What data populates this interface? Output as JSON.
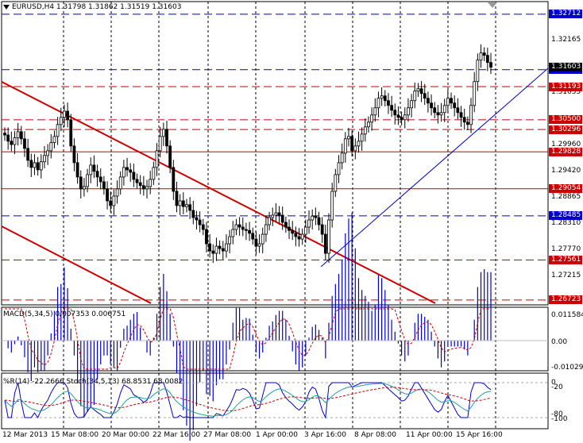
{
  "main": {
    "symbol_info": "EURUSD,H4  1.31798 1.31862 1.31519 1.31603",
    "price_min": 1.2672,
    "price_max": 1.3271,
    "axis_labels": [
      "1.32712",
      "1.32165",
      "1.31055",
      "1.29960",
      "1.29420",
      "1.28865",
      "1.28310",
      "1.27770",
      "1.27215",
      "1.26723"
    ],
    "levels": [
      {
        "label": "1.32712",
        "price": 1.32712,
        "color": "#0000cc",
        "style": "dash"
      },
      {
        "label": "1.31550",
        "price": 1.3155,
        "color": "#0000cc",
        "style": "dash"
      },
      {
        "label": "1.31193",
        "price": 1.31193,
        "color": "#cc0000",
        "style": "dash"
      },
      {
        "label": "1.30500",
        "price": 1.305,
        "color": "#cc0000",
        "style": "dash"
      },
      {
        "label": "1.30296",
        "price": 1.30296,
        "color": "#cc0000",
        "style": "dash"
      },
      {
        "label": "1.29828",
        "price": 1.29828,
        "color": "#cc0000",
        "style": "solid"
      },
      {
        "label": "1.29054",
        "price": 1.29054,
        "color": "#cc0000",
        "style": "solid"
      },
      {
        "label": "1.28485",
        "price": 1.28485,
        "color": "#0000cc",
        "style": "dash"
      },
      {
        "label": "1.27561",
        "price": 1.27561,
        "color": "#cc0000",
        "style": "dash"
      },
      {
        "label": "1.26723",
        "price": 1.26723,
        "color": "#cc0000",
        "style": "dash"
      }
    ],
    "current_price_label": "1.31603"
  },
  "macd": {
    "title": "MACD(5,34,5) 0.007353 0.006751",
    "axis_labels": [
      "0.011584",
      "0.00",
      "-0.010298"
    ]
  },
  "stoch": {
    "title": "%R(14) -22.2666  Stoch(34,5,13) 68.8531 68.0082",
    "axis_labels": [
      "0",
      "-20",
      "-80",
      "-100"
    ]
  },
  "time_labels": [
    "12 Mar 2013",
    "15 Mar 08:00",
    "20 Mar 00:00",
    "22 Mar 16:00",
    "27 Mar 08:00",
    "1 Apr 00:00",
    "3 Apr 16:00",
    "8 Apr 08:00",
    "11 Apr 00:00",
    "15 Apr 16:00"
  ],
  "colors": {
    "grid": "#000000",
    "candle": "#000000",
    "support": "#cc0000",
    "trend": "#0000cc",
    "macd_hist": "#0000cc",
    "macd_signal": "#cc0000",
    "wpr": "#0000cc",
    "stoch_main": "#20a0a0",
    "stoch_signal": "#cc0000"
  },
  "chart_data": {
    "type": "candlestick",
    "symbol": "EURUSD",
    "timeframe": "H4",
    "close_series": [
      1.3018,
      1.3005,
      1.2998,
      1.3012,
      1.3025,
      1.301,
      1.299,
      1.2965,
      1.295,
      1.296,
      1.2945,
      1.2962,
      1.2975,
      1.2985,
      1.3002,
      1.3015,
      1.304,
      1.3055,
      1.3068,
      1.305,
      1.2995,
      1.296,
      1.293,
      1.2905,
      1.291,
      1.2935,
      1.2955,
      1.2942,
      1.293,
      1.292,
      1.2905,
      1.288,
      1.287,
      1.289,
      1.2905,
      1.293,
      1.295,
      1.2945,
      1.294,
      1.2925,
      1.2918,
      1.2912,
      1.2905,
      1.291,
      1.2925,
      1.295,
      1.2985,
      1.3015,
      1.303,
      1.2995,
      1.295,
      1.29,
      1.287,
      1.288,
      1.2868,
      1.2872,
      1.286,
      1.2845,
      1.284,
      1.283,
      1.282,
      1.279,
      1.2775,
      1.277,
      1.2785,
      1.278,
      1.2775,
      1.279,
      1.2805,
      1.282,
      1.283,
      1.2825,
      1.282,
      1.2818,
      1.2812,
      1.28,
      1.2785,
      1.279,
      1.281,
      1.283,
      1.2845,
      1.285,
      1.2855,
      1.285,
      1.2835,
      1.2825,
      1.2818,
      1.2812,
      1.2805,
      1.28,
      1.281,
      1.2825,
      1.284,
      1.2848,
      1.2845,
      1.283,
      1.281,
      1.277,
      1.284,
      1.29,
      1.2935,
      1.296,
      1.298,
      1.301,
      1.3015,
      1.2985,
      1.2995,
      1.3005,
      1.302,
      1.3035,
      1.3045,
      1.306,
      1.3075,
      1.3095,
      1.31,
      1.309,
      1.308,
      1.307,
      1.306,
      1.3055,
      1.305,
      1.306,
      1.3075,
      1.309,
      1.311,
      1.3115,
      1.3105,
      1.3095,
      1.3085,
      1.3075,
      1.3065,
      1.306,
      1.3065,
      1.308,
      1.3095,
      1.3085,
      1.3075,
      1.3065,
      1.3055,
      1.3045,
      1.304,
      1.308,
      1.313,
      1.3175,
      1.319,
      1.3185,
      1.317,
      1.316
    ]
  }
}
